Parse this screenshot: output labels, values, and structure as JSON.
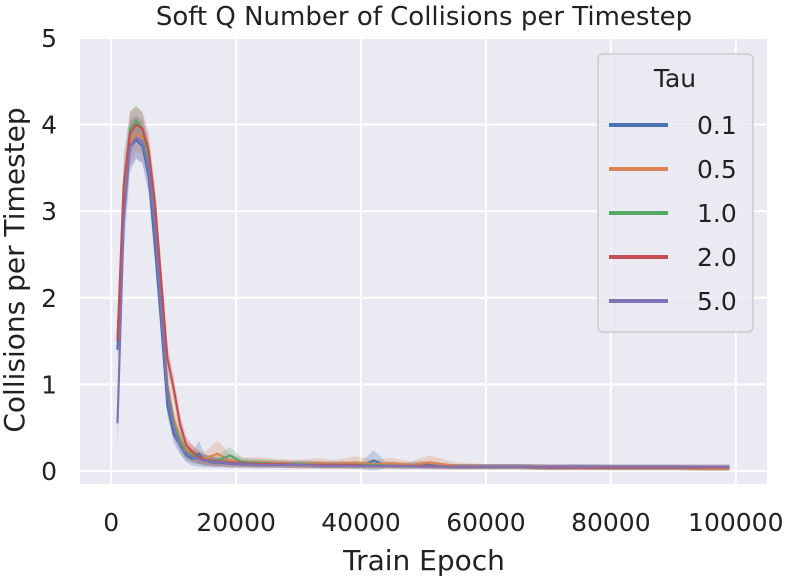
{
  "chart_data": {
    "type": "line",
    "title": "Soft Q Number of Collisions per Timestep",
    "xlabel": "Train Epoch",
    "ylabel": "Collisions per Timestep",
    "xlim": [
      -5000,
      105000
    ],
    "ylim": [
      -0.15,
      5.0
    ],
    "xticks": [
      0,
      20000,
      40000,
      60000,
      80000,
      100000
    ],
    "xtick_labels": [
      "0",
      "20000",
      "40000",
      "60000",
      "80000",
      "100000"
    ],
    "yticks": [
      0,
      1,
      2,
      3,
      4,
      5
    ],
    "ytick_labels": [
      "0",
      "1",
      "2",
      "3",
      "4",
      "5"
    ],
    "grid": true,
    "confidence_bands": true,
    "legend": {
      "title": "Tau",
      "placement": "top-right"
    },
    "series": [
      {
        "name": "0.1",
        "color": "#4c72b0",
        "x": [
          1000,
          2000,
          3000,
          4000,
          5000,
          6000,
          7000,
          8000,
          9000,
          10000,
          11000,
          12000,
          13000,
          14000,
          15000,
          16000,
          18000,
          20000,
          22000,
          25000,
          28000,
          31000,
          34000,
          37000,
          40000,
          42000,
          44000,
          47000,
          50000,
          52000,
          55000,
          60000,
          65000,
          70000,
          75000,
          80000,
          85000,
          90000,
          95000,
          99000
        ],
        "y": [
          1.4,
          3.0,
          3.75,
          3.82,
          3.75,
          3.4,
          2.6,
          1.7,
          0.75,
          0.42,
          0.3,
          0.18,
          0.14,
          0.2,
          0.12,
          0.1,
          0.09,
          0.08,
          0.08,
          0.08,
          0.07,
          0.08,
          0.07,
          0.07,
          0.06,
          0.12,
          0.07,
          0.06,
          0.08,
          0.06,
          0.05,
          0.05,
          0.05,
          0.04,
          0.05,
          0.04,
          0.04,
          0.04,
          0.03,
          0.03
        ],
        "spread": [
          0.15,
          0.3,
          0.25,
          0.2,
          0.2,
          0.2,
          0.2,
          0.18,
          0.12,
          0.1,
          0.1,
          0.08,
          0.08,
          0.15,
          0.08,
          0.06,
          0.05,
          0.05,
          0.04,
          0.04,
          0.04,
          0.04,
          0.04,
          0.04,
          0.04,
          0.12,
          0.04,
          0.04,
          0.04,
          0.03,
          0.03,
          0.03,
          0.03,
          0.03,
          0.03,
          0.03,
          0.03,
          0.03,
          0.03,
          0.03
        ]
      },
      {
        "name": "0.5",
        "color": "#dd8452",
        "x": [
          1000,
          2000,
          3000,
          4000,
          5000,
          6000,
          7000,
          8000,
          9000,
          10000,
          11000,
          12000,
          13000,
          14000,
          15000,
          17000,
          19000,
          21000,
          24000,
          27000,
          30000,
          33000,
          36000,
          39000,
          42000,
          45000,
          48000,
          51000,
          55000,
          60000,
          65000,
          70000,
          75000,
          80000,
          85000,
          90000,
          95000,
          99000
        ],
        "y": [
          1.5,
          3.1,
          3.8,
          3.9,
          3.85,
          3.6,
          2.9,
          1.95,
          1.0,
          0.6,
          0.38,
          0.25,
          0.2,
          0.16,
          0.14,
          0.2,
          0.12,
          0.1,
          0.1,
          0.09,
          0.08,
          0.09,
          0.08,
          0.1,
          0.08,
          0.09,
          0.07,
          0.1,
          0.06,
          0.05,
          0.05,
          0.05,
          0.04,
          0.04,
          0.04,
          0.04,
          0.03,
          0.03
        ],
        "spread": [
          0.15,
          0.3,
          0.25,
          0.2,
          0.2,
          0.2,
          0.2,
          0.2,
          0.15,
          0.12,
          0.12,
          0.1,
          0.1,
          0.08,
          0.08,
          0.15,
          0.08,
          0.06,
          0.06,
          0.05,
          0.05,
          0.06,
          0.05,
          0.07,
          0.05,
          0.06,
          0.04,
          0.08,
          0.04,
          0.03,
          0.03,
          0.03,
          0.03,
          0.03,
          0.03,
          0.03,
          0.03,
          0.03
        ]
      },
      {
        "name": "1.0",
        "color": "#55a868",
        "x": [
          1000,
          2000,
          3000,
          4000,
          5000,
          6000,
          7000,
          8000,
          9000,
          10000,
          11000,
          12000,
          13000,
          14000,
          15000,
          17000,
          19000,
          21000,
          24000,
          27000,
          30000,
          34000,
          38000,
          42000,
          46000,
          50000,
          55000,
          60000,
          65000,
          70000,
          75000,
          80000,
          85000,
          90000,
          95000,
          99000
        ],
        "y": [
          1.5,
          3.2,
          3.95,
          4.05,
          3.95,
          3.6,
          2.9,
          1.9,
          0.95,
          0.55,
          0.35,
          0.22,
          0.18,
          0.15,
          0.13,
          0.12,
          0.18,
          0.1,
          0.09,
          0.08,
          0.08,
          0.07,
          0.07,
          0.07,
          0.06,
          0.06,
          0.05,
          0.05,
          0.05,
          0.04,
          0.04,
          0.04,
          0.04,
          0.04,
          0.04,
          0.04
        ],
        "spread": [
          0.15,
          0.3,
          0.2,
          0.18,
          0.18,
          0.2,
          0.2,
          0.18,
          0.12,
          0.1,
          0.1,
          0.08,
          0.08,
          0.07,
          0.06,
          0.06,
          0.1,
          0.05,
          0.05,
          0.04,
          0.04,
          0.04,
          0.04,
          0.04,
          0.03,
          0.03,
          0.03,
          0.03,
          0.03,
          0.03,
          0.03,
          0.03,
          0.03,
          0.03,
          0.03,
          0.03
        ]
      },
      {
        "name": "2.0",
        "color": "#c44e52",
        "x": [
          1000,
          2000,
          3000,
          4000,
          5000,
          6000,
          7000,
          8000,
          9000,
          10000,
          11000,
          12000,
          13000,
          14000,
          15000,
          17000,
          19000,
          21000,
          24000,
          27000,
          30000,
          34000,
          38000,
          42000,
          46000,
          50000,
          55000,
          60000,
          65000,
          70000,
          75000,
          80000,
          85000,
          90000,
          95000,
          99000
        ],
        "y": [
          1.5,
          3.3,
          3.9,
          4.0,
          3.95,
          3.7,
          3.1,
          2.2,
          1.3,
          0.95,
          0.55,
          0.3,
          0.22,
          0.16,
          0.13,
          0.11,
          0.1,
          0.09,
          0.08,
          0.08,
          0.07,
          0.07,
          0.07,
          0.06,
          0.06,
          0.06,
          0.05,
          0.05,
          0.05,
          0.04,
          0.04,
          0.04,
          0.04,
          0.04,
          0.04,
          0.04
        ],
        "spread": [
          0.2,
          0.35,
          0.25,
          0.2,
          0.2,
          0.2,
          0.2,
          0.2,
          0.15,
          0.15,
          0.12,
          0.1,
          0.08,
          0.07,
          0.06,
          0.05,
          0.05,
          0.04,
          0.04,
          0.04,
          0.04,
          0.04,
          0.04,
          0.03,
          0.03,
          0.03,
          0.03,
          0.03,
          0.03,
          0.03,
          0.03,
          0.03,
          0.03,
          0.03,
          0.03,
          0.03
        ]
      },
      {
        "name": "5.0",
        "color": "#8172b3",
        "x": [
          1000,
          2000,
          3000,
          4000,
          5000,
          6000,
          7000,
          8000,
          9000,
          10000,
          11000,
          12000,
          13000,
          14000,
          15000,
          17000,
          19000,
          21000,
          24000,
          27000,
          30000,
          34000,
          38000,
          42000,
          46000,
          50000,
          55000,
          60000,
          65000,
          70000,
          75000,
          80000,
          85000,
          90000,
          95000,
          99000
        ],
        "y": [
          0.55,
          2.9,
          3.75,
          3.85,
          3.8,
          3.5,
          2.8,
          1.85,
          0.9,
          0.5,
          0.3,
          0.2,
          0.16,
          0.14,
          0.12,
          0.1,
          0.09,
          0.08,
          0.07,
          0.07,
          0.07,
          0.06,
          0.06,
          0.06,
          0.06,
          0.05,
          0.05,
          0.05,
          0.05,
          0.05,
          0.05,
          0.05,
          0.05,
          0.05,
          0.05,
          0.05
        ],
        "spread": [
          0.3,
          0.4,
          0.3,
          0.25,
          0.25,
          0.25,
          0.22,
          0.2,
          0.15,
          0.12,
          0.1,
          0.08,
          0.07,
          0.06,
          0.06,
          0.05,
          0.04,
          0.04,
          0.04,
          0.03,
          0.03,
          0.03,
          0.03,
          0.03,
          0.03,
          0.03,
          0.03,
          0.03,
          0.03,
          0.03,
          0.03,
          0.03,
          0.03,
          0.03,
          0.03,
          0.03
        ]
      }
    ]
  }
}
